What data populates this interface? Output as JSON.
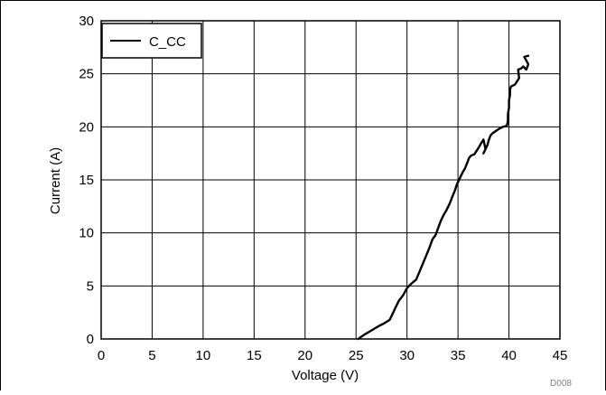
{
  "chart_data": {
    "type": "line",
    "title": "",
    "xlabel": "Voltage (V)",
    "ylabel": "Current (A)",
    "xlim": [
      0,
      45
    ],
    "ylim": [
      0,
      30
    ],
    "x_ticks": [
      0,
      5,
      10,
      15,
      20,
      25,
      30,
      35,
      40,
      45
    ],
    "y_ticks": [
      0,
      5,
      10,
      15,
      20,
      25,
      30
    ],
    "grid": true,
    "legend_position": "top-left",
    "figure_id": "D008",
    "series": [
      {
        "name": "C_CC",
        "color": "#000000",
        "x": [
          25.2,
          25.8,
          26.5,
          27.2,
          27.8,
          28.3,
          28.6,
          28.9,
          29.2,
          29.6,
          30.0,
          30.4,
          30.9,
          31.3,
          31.6,
          31.9,
          32.2,
          32.5,
          32.8,
          33.0,
          33.3,
          33.6,
          33.9,
          34.2,
          34.4,
          34.7,
          34.9,
          35.2,
          35.5,
          35.7,
          35.9,
          36.1,
          36.3,
          36.6,
          36.8,
          37.0,
          37.3,
          37.5,
          37.7,
          37.5,
          37.9,
          38.0,
          38.2,
          38.4,
          38.7,
          39.0,
          39.4,
          39.8,
          39.9,
          39.9,
          40.0,
          40.0,
          40.1,
          40.1,
          40.2,
          40.6,
          41.0,
          40.9,
          41.2,
          41.4,
          41.7,
          41.9,
          41.5,
          41.9
        ],
        "y": [
          0.0,
          0.4,
          0.8,
          1.2,
          1.5,
          1.8,
          2.4,
          3.0,
          3.6,
          4.1,
          4.8,
          5.2,
          5.6,
          6.5,
          7.2,
          7.9,
          8.6,
          9.4,
          9.8,
          10.3,
          11.1,
          11.7,
          12.2,
          12.8,
          13.3,
          14.0,
          14.6,
          15.2,
          15.8,
          16.1,
          16.6,
          17.1,
          17.3,
          17.4,
          17.7,
          18.0,
          18.5,
          18.8,
          17.9,
          17.5,
          18.3,
          18.7,
          19.2,
          19.4,
          19.6,
          19.8,
          20.0,
          20.1,
          20.6,
          21.2,
          21.8,
          22.5,
          23.0,
          23.5,
          23.8,
          24.0,
          24.6,
          25.4,
          25.5,
          25.7,
          25.4,
          25.9,
          26.6,
          26.7
        ]
      }
    ]
  }
}
